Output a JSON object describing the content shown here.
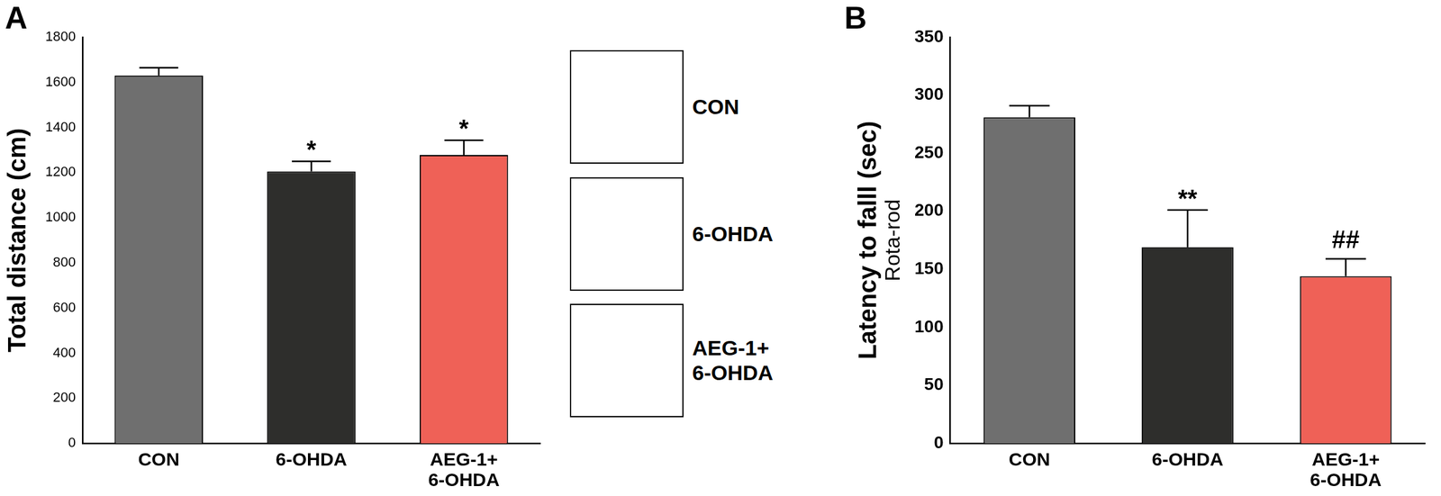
{
  "chart_data": [
    {
      "type": "bar",
      "title": "A",
      "categories": [
        "CON",
        "6-OHDA",
        "AEG-1+\n6-OHDA"
      ],
      "values": [
        1630,
        1205,
        1278
      ],
      "errors": [
        35,
        45,
        65
      ],
      "colors": [
        "#6f6f6f",
        "#2e2e2c",
        "#ef6157"
      ],
      "y_label": [
        "Total distance (cm)"
      ],
      "ylim": [
        0,
        1800
      ],
      "yticks": [
        0,
        200,
        400,
        600,
        800,
        1000,
        1200,
        1400,
        1600,
        1800
      ],
      "annotations": [
        {
          "category": "6-OHDA",
          "text": "*"
        },
        {
          "category": "AEG-1+\n6-OHDA",
          "text": "*"
        }
      ]
    },
    {
      "type": "bar",
      "title": "B",
      "categories": [
        "CON",
        "6-OHDA",
        "AEG-1+\n6-OHDA"
      ],
      "values": [
        281,
        169,
        144
      ],
      "errors": [
        10,
        32,
        15
      ],
      "colors": [
        "#6f6f6f",
        "#2e2e2c",
        "#ef6157"
      ],
      "y_label": [
        "Latency to falll (sec)",
        "Rota-rod"
      ],
      "ylim": [
        0,
        350
      ],
      "yticks": [
        0,
        50,
        100,
        150,
        200,
        250,
        300,
        350
      ],
      "annotations": [
        {
          "category": "6-OHDA",
          "text": "**"
        },
        {
          "category": "AEG-1+\n6-OHDA",
          "text": "##"
        }
      ]
    }
  ],
  "open_field_tracks": {
    "labels": [
      "CON",
      "6-OHDA",
      "AEG-1+\n6-OHDA"
    ]
  }
}
